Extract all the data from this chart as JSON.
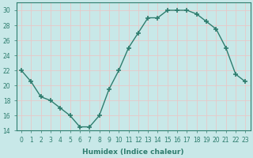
{
  "x": [
    0,
    1,
    2,
    3,
    4,
    5,
    6,
    7,
    8,
    9,
    10,
    11,
    12,
    13,
    14,
    15,
    16,
    17,
    18,
    19,
    20,
    21,
    22,
    23
  ],
  "y": [
    22,
    20.5,
    18.5,
    18,
    17,
    16,
    14.5,
    14.5,
    16,
    19.5,
    22,
    25,
    27,
    29,
    29,
    30,
    30,
    30,
    29.5,
    28.5,
    27.5,
    25,
    21.5,
    20.5
  ],
  "line_color": "#2e7d6e",
  "marker_color": "#2e7d6e",
  "bg_color": "#c8e8e8",
  "grid_color": "#e8c8c8",
  "xlabel": "Humidex (Indice chaleur)",
  "xlim": [
    -0.5,
    23.5
  ],
  "ylim": [
    14,
    31
  ],
  "yticks": [
    14,
    16,
    18,
    20,
    22,
    24,
    26,
    28,
    30
  ],
  "xticks": [
    0,
    1,
    2,
    3,
    4,
    5,
    6,
    7,
    8,
    9,
    10,
    11,
    12,
    13,
    14,
    15,
    16,
    17,
    18,
    19,
    20,
    21,
    22,
    23
  ],
  "xlabel_fontsize": 6.5,
  "tick_fontsize": 5.5,
  "line_width": 1.0,
  "marker_size": 4
}
